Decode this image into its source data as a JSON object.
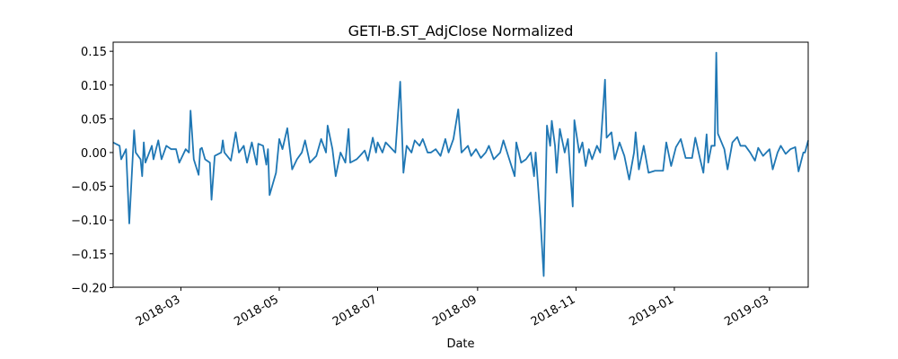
{
  "chart_data": {
    "type": "line",
    "title": "GETI-B.ST_AdjClose Normalized",
    "xlabel": "Date",
    "x": [
      17549,
      17553,
      17554,
      17557,
      17559,
      17562,
      17563,
      17566,
      17567,
      17568,
      17569,
      17573,
      17574,
      17577,
      17579,
      17582,
      17585,
      17588,
      17590,
      17594,
      17596,
      17597,
      17599,
      17602,
      17603,
      17604,
      17606,
      17609,
      17610,
      17612,
      17616,
      17617,
      17618,
      17622,
      17625,
      17627,
      17630,
      17632,
      17635,
      17638,
      17639,
      17642,
      17644,
      17645,
      17646,
      17650,
      17652,
      17654,
      17657,
      17660,
      17663,
      17666,
      17668,
      17671,
      17675,
      17678,
      17681,
      17682,
      17685,
      17687,
      17690,
      17693,
      17695,
      17696,
      17700,
      17702,
      17705,
      17707,
      17710,
      17712,
      17713,
      17716,
      17718,
      17724,
      17727,
      17729,
      17731,
      17734,
      17736,
      17739,
      17741,
      17744,
      17746,
      17749,
      17752,
      17755,
      17757,
      17760,
      17763,
      17765,
      17769,
      17771,
      17774,
      17777,
      17780,
      17782,
      17785,
      17789,
      17791,
      17794,
      17798,
      17799,
      17802,
      17805,
      17808,
      17810,
      17811,
      17814,
      17816,
      17818,
      17820,
      17821,
      17823,
      17824,
      17826,
      17829,
      17831,
      17834,
      17835,
      17838,
      17840,
      17842,
      17844,
      17846,
      17849,
      17851,
      17854,
      17855,
      17858,
      17860,
      17863,
      17866,
      17869,
      17872,
      17873,
      17875,
      17878,
      17881,
      17885,
      17890,
      17892,
      17895,
      17898,
      17901,
      17904,
      17908,
      17910,
      17913,
      17915,
      17917,
      17918,
      17920,
      17922,
      17923,
      17924,
      17928,
      17930,
      17933,
      17936,
      17938,
      17941,
      17944,
      17947,
      17949,
      17952,
      17956,
      17958,
      17961,
      17963,
      17966,
      17969,
      17972,
      17974,
      17977,
      17978,
      17980
    ],
    "series": [
      {
        "color": "#1f77b4",
        "values": [
          0.015,
          0.01,
          -0.01,
          0.005,
          -0.105,
          0.033,
          0.0,
          -0.01,
          -0.035,
          0.015,
          -0.015,
          0.01,
          -0.01,
          0.018,
          -0.01,
          0.01,
          0.005,
          0.005,
          -0.015,
          0.005,
          0.0,
          0.062,
          -0.01,
          -0.033,
          0.005,
          0.007,
          -0.01,
          -0.015,
          -0.07,
          -0.005,
          0.0,
          0.018,
          0.0,
          -0.012,
          0.03,
          0.0,
          0.01,
          -0.015,
          0.015,
          -0.018,
          0.013,
          0.01,
          -0.018,
          0.005,
          -0.063,
          -0.03,
          0.02,
          0.005,
          0.036,
          -0.025,
          -0.01,
          0.0,
          0.018,
          -0.015,
          -0.005,
          0.02,
          0.0,
          0.04,
          0.005,
          -0.035,
          0.0,
          -0.015,
          0.035,
          -0.015,
          -0.01,
          -0.005,
          0.003,
          -0.012,
          0.022,
          0.0,
          0.015,
          0.0,
          0.015,
          0.0,
          0.105,
          -0.03,
          0.01,
          0.0,
          0.018,
          0.01,
          0.02,
          0.0,
          0.0,
          0.005,
          -0.005,
          0.02,
          0.0,
          0.02,
          0.064,
          0.0,
          0.01,
          -0.005,
          0.005,
          -0.008,
          0.0,
          0.01,
          -0.01,
          0.0,
          0.018,
          -0.005,
          -0.035,
          0.015,
          -0.015,
          -0.01,
          0.0,
          -0.035,
          0.0,
          -0.1,
          -0.183,
          0.04,
          0.01,
          0.047,
          0.01,
          -0.03,
          0.035,
          0.0,
          0.02,
          -0.08,
          0.048,
          0.0,
          0.015,
          -0.02,
          0.005,
          -0.01,
          0.01,
          0.0,
          0.108,
          0.022,
          0.03,
          -0.01,
          0.015,
          -0.005,
          -0.04,
          0.0,
          0.03,
          -0.025,
          0.01,
          -0.03,
          -0.027,
          -0.027,
          0.015,
          -0.02,
          0.008,
          0.02,
          -0.008,
          -0.008,
          0.022,
          -0.01,
          -0.03,
          0.027,
          -0.015,
          0.01,
          0.01,
          0.148,
          0.028,
          0.005,
          -0.025,
          0.015,
          0.023,
          0.01,
          0.01,
          0.0,
          -0.012,
          0.007,
          -0.005,
          0.005,
          -0.025,
          0.0,
          0.01,
          -0.002,
          0.005,
          0.008,
          -0.028,
          0.0,
          0.0,
          0.018
        ]
      }
    ],
    "xlim": [
      17549,
      17980
    ],
    "xticks": [
      {
        "value": 17591,
        "label": "2018-03"
      },
      {
        "value": 17652,
        "label": "2018-05"
      },
      {
        "value": 17713,
        "label": "2018-07"
      },
      {
        "value": 17775,
        "label": "2018-09"
      },
      {
        "value": 17836,
        "label": "2018-11"
      },
      {
        "value": 17897,
        "label": "2019-01"
      },
      {
        "value": 17956,
        "label": "2019-03"
      }
    ],
    "ylim": [
      -0.1995,
      0.1635
    ],
    "yticks": [
      {
        "value": 0.15,
        "label": "0.15"
      },
      {
        "value": 0.1,
        "label": "0.10"
      },
      {
        "value": 0.05,
        "label": "0.05"
      },
      {
        "value": 0,
        "label": "0.00"
      },
      {
        "value": -0.05,
        "label": "−0.05"
      },
      {
        "value": -0.1,
        "label": "−0.10"
      },
      {
        "value": -0.15,
        "label": "−0.15"
      },
      {
        "value": -0.2,
        "label": "−0.20"
      }
    ],
    "grid": false
  }
}
